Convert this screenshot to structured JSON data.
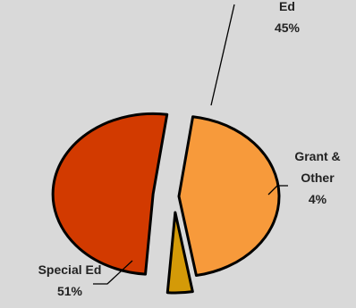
{
  "chart_data": {
    "type": "pie",
    "title": "",
    "slices": [
      {
        "name": "Ed",
        "value": 45,
        "value_label": "45%",
        "color": "#f79a3b",
        "label_lines": [
          "Ed"
        ]
      },
      {
        "name": "Grant & Other",
        "value": 4,
        "value_label": "4%",
        "color": "#d49a08",
        "label_lines": [
          "Grant &",
          "Other"
        ]
      },
      {
        "name": "Special Ed",
        "value": 51,
        "value_label": "51%",
        "color": "#d23a00",
        "label_lines": [
          "Special Ed"
        ]
      }
    ],
    "exploded": true,
    "legend": "none"
  }
}
